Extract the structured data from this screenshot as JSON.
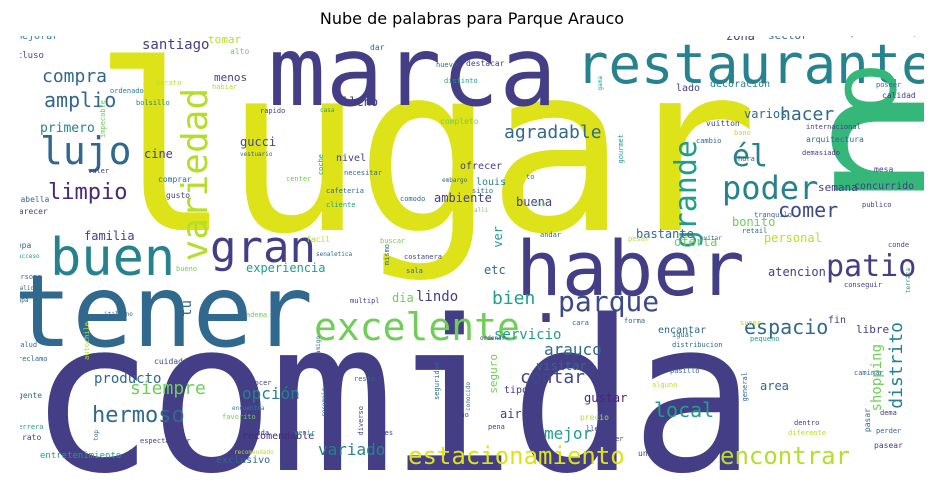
{
  "title": "Nube de palabras para Parque Arauco",
  "colors": {
    "navy": "#433e85",
    "dark": "#3e4989",
    "purple": "#482878",
    "slate": "#31688e",
    "teal": "#26828e",
    "cyan": "#1f9e89",
    "green": "#35b779",
    "lime": "#6ece58",
    "yellowgreen": "#b5de2b",
    "yellow": "#dde318"
  },
  "words": {
    "lugar": "lugar",
    "comida": "comida",
    "tener": "tener",
    "haber": "haber",
    "marca": "marca",
    "restaurante": "restaurante",
    "gran": "gran",
    "buen": "buen",
    "lujo": "lujo",
    "variedad": "variedad",
    "excelente": "excelente",
    "parque": "parque",
    "patio": "patio",
    "poder": "poder",
    "grande": "grande",
    "el": "él",
    "agradable": "agradable",
    "limpio": "limpio",
    "compra": "compra",
    "amplio": "amplio",
    "espacio": "espacio",
    "estacionamiento": "estacionamiento",
    "encontrar": "encontrar",
    "hermoso": "hermoso",
    "santiago": "santiago",
    "comer": "comer",
    "hacer": "hacer",
    "local": "local",
    "distrito": "distrito",
    "siempre": "siempre",
    "producto": "producto",
    "arauco": "arauco",
    "servicio": "servicio",
    "contar": "contar",
    "mejor": "mejor",
    "opcion_acc": "opción",
    "variado": "variado",
    "bien": "bien",
    "lindo": "lindo",
    "primero": "primero",
    "familia": "familia",
    "experiencia": "experiencia",
    "cine": "cine",
    "gucci": "gucci",
    "etc": "etc",
    "ver": "ver",
    "dia": "dia",
    "shopping": "shopping",
    "area": "area",
    "gustar": "gustar",
    "visitar": "visitar",
    "aire": "aire",
    "recomendable": "recomendable",
    "exclusivo": "exclusivo",
    "bastante": "bastante",
    "oferta": "oferta",
    "atencion": "atencion",
    "personal": "personal",
    "bonito": "bonito",
    "semana": "semana",
    "concurrido": "concurrido",
    "varios": "varios",
    "ambiente": "ambiente",
    "buena": "buena",
    "ofrecer": "ofrecer",
    "louis": "louis",
    "menos": "menos",
    "lleno": "lleno",
    "tomar": "tomar",
    "zona": "zona",
    "disfrutar": "disfrutar",
    "sector": "sector",
    "nivel": "nivel",
    "seguro": "seguro",
    "tipo": "tipo",
    "fin": "fin",
    "libre": "libre",
    "encantar": "encantar",
    "tu": "tú",
    "mejorar": "mejorar",
    "incluso": "incluso",
    "alto": "alto",
    "opcion": "opcion",
    "kennedy": "kennedy",
    "nuevo": "nuevo",
    "destacar": "destacar",
    "dar": "dar",
    "barato": "barato",
    "ordenado": "ordenado",
    "bolsillo": "bolsillo",
    "impecable": "impecable",
    "habiar": "habiar",
    "distinto": "distinto",
    "lado": "lado",
    "decoracion": "decoracion",
    "poseer": "poseer",
    "completo": "completo",
    "gama": "gama",
    "rapido": "rapido",
    "casa": "casa",
    "calidad": "calidad",
    "vuitton": "vuitton",
    "internacional": "internacional",
    "bano": "bano",
    "arquitectura": "arquitectura",
    "cambio": "cambio",
    "demasiado": "demasiado",
    "gourmet": "gourmet",
    "hora": "hora",
    "mesa": "mesa",
    "valer": "valer",
    "comprar": "comprar",
    "vestuario": "vestuario",
    "coche": "coche",
    "necesitar": "necesitar",
    "embargo": "embargo",
    "sitio": "sitio",
    "alli": "alli",
    "center": "center",
    "cafeteria": "cafeteria",
    "to": "to",
    "comodo": "comodo",
    "lluvia": "lluvia",
    "tranquilo": "tranquilo",
    "publico": "publico",
    "falabella": "falabella",
    "parecer": "parecer",
    "gusto": "gusto",
    "cliente": "cliente",
    "ropa": "ropa",
    "acceso": "acceso",
    "facil": "facil",
    "buscar": "buscar",
    "andar": "andar",
    "pesar": "pesar",
    "evitar": "evitar",
    "retail": "retail",
    "conde": "conde",
    "bueno": "bueno",
    "senaletica": "senaletica",
    "mismo": "mismo",
    "costanera": "costanera",
    "sala": "sala",
    "persona": "persona",
    "calida": "calida",
    "mapa": "mapa",
    "italiano": "italiano",
    "multipl": "multipl",
    "adema": "adema",
    "conseguir": "conseguir",
    "terraza": "terraza",
    "super": "super",
    "cara": "cara",
    "forma": "forma",
    "ordenar": "ordenar",
    "igual": "igual",
    "distribucion": "distribucion",
    "pequeno": "pequeno",
    "salud": "salud",
    "autochile": "autochile",
    "reclamo": "reclamo",
    "amigo": "amigo",
    "resto": "resto",
    "pasillo": "pasillo",
    "conocer": "conocer",
    "cuidado": "cuidado",
    "encuentra": "encuentra",
    "favorito": "favorito",
    "recomeir": "recomeir",
    "seguridad": "seguridad",
    "nino": "nino",
    "conocido": "conocido",
    "alguno": "alguno",
    "general": "general",
    "caminar": "caminar",
    "gente": "gente",
    "precio": "precio",
    "herrera": "herrera",
    "existir": "existir",
    "ayuda": "ayuda",
    "diverso": "diverso",
    "pena": "pena",
    "dentro": "dentro",
    "diferente": "diferente",
    "pasar": "pasar",
    "dema": "dema",
    "rato": "rato",
    "top": "top",
    "espectacular": "espectacular",
    "venir": "venir",
    "lunes": "lunes",
    "llegar": "llegar",
    "atender": "atender",
    "perder": "perder",
    "pasear": "pasear",
    "entretenimiento": "entretenimiento",
    "recomendado": "recomendado",
    "unico": "unico"
  }
}
